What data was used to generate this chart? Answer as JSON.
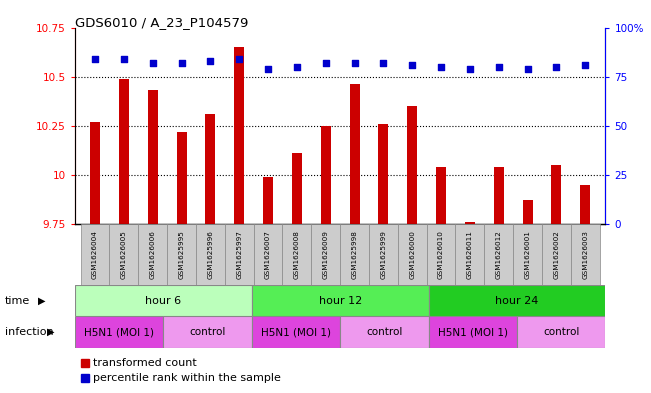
{
  "title": "GDS6010 / A_23_P104579",
  "samples": [
    "GSM1626004",
    "GSM1626005",
    "GSM1626006",
    "GSM1625995",
    "GSM1625996",
    "GSM1625997",
    "GSM1626007",
    "GSM1626008",
    "GSM1626009",
    "GSM1625998",
    "GSM1625999",
    "GSM1626000",
    "GSM1626010",
    "GSM1626011",
    "GSM1626012",
    "GSM1626001",
    "GSM1626002",
    "GSM1626003"
  ],
  "bar_values": [
    10.27,
    10.49,
    10.43,
    10.22,
    10.31,
    10.65,
    9.99,
    10.11,
    10.25,
    10.46,
    10.26,
    10.35,
    10.04,
    9.76,
    10.04,
    9.87,
    10.05,
    9.95
  ],
  "dot_values": [
    84,
    84,
    82,
    82,
    83,
    84,
    79,
    80,
    82,
    82,
    82,
    81,
    80,
    79,
    80,
    79,
    80,
    81
  ],
  "bar_color": "#cc0000",
  "dot_color": "#0000cc",
  "ylim_left": [
    9.75,
    10.75
  ],
  "ylim_right": [
    0,
    100
  ],
  "yticks_left": [
    9.75,
    10.0,
    10.25,
    10.5,
    10.75
  ],
  "yticks_right": [
    0,
    25,
    50,
    75,
    100
  ],
  "ytick_labels_left": [
    "9.75",
    "10",
    "10.25",
    "10.5",
    "10.75"
  ],
  "ytick_labels_right": [
    "0",
    "25",
    "50",
    "75",
    "100%"
  ],
  "grid_values": [
    10.0,
    10.25,
    10.5
  ],
  "hline_at_975": 9.75,
  "time_groups": [
    {
      "label": "hour 6",
      "start": 0,
      "end": 6,
      "color": "#bbffbb"
    },
    {
      "label": "hour 12",
      "start": 6,
      "end": 12,
      "color": "#55ee55"
    },
    {
      "label": "hour 24",
      "start": 12,
      "end": 18,
      "color": "#22cc22"
    }
  ],
  "infection_groups": [
    {
      "label": "H5N1 (MOI 1)",
      "start": 0,
      "end": 3
    },
    {
      "label": "control",
      "start": 3,
      "end": 6
    },
    {
      "label": "H5N1 (MOI 1)",
      "start": 6,
      "end": 9
    },
    {
      "label": "control",
      "start": 9,
      "end": 12
    },
    {
      "label": "H5N1 (MOI 1)",
      "start": 12,
      "end": 15
    },
    {
      "label": "control",
      "start": 15,
      "end": 18
    }
  ],
  "infection_colors": {
    "H5N1 (MOI 1)": "#dd44dd",
    "control": "#ee99ee"
  },
  "sample_box_color": "#cccccc",
  "bar_bottom": 9.75,
  "legend_transformed": "transformed count",
  "legend_percentile": "percentile rank within the sample",
  "time_label": "time",
  "infection_label": "infection"
}
